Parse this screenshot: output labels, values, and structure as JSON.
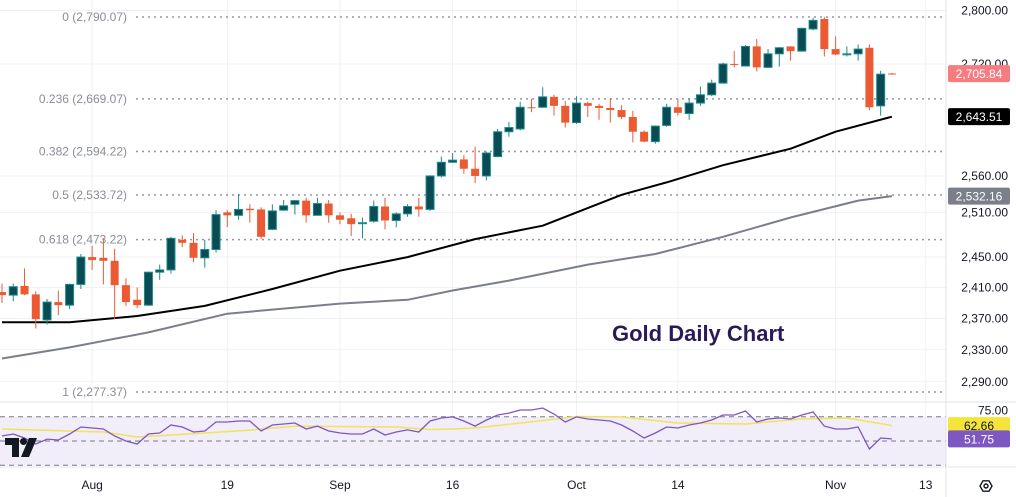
{
  "chart_data": {
    "type": "candlestick",
    "title": "Gold Daily Chart",
    "y_scale": "log",
    "grid": true,
    "colors": {
      "up_body": "#0b4b54",
      "up_border": "#1b8c8c",
      "down": "#ec5a33",
      "sma_fast": "#000000",
      "sma_slow": "#7b7f8a",
      "rsi": "#7e57c2",
      "rsi_ma": "#f2e35a",
      "rsi_band": "#f1edf9",
      "fib": "#9598a1"
    },
    "x_tick_labels": [
      {
        "date": "2024-08-01",
        "label": "Aug"
      },
      {
        "date": "2024-08-19",
        "label": "19"
      },
      {
        "date": "2024-09-02",
        "label": "Sep"
      },
      {
        "date": "2024-09-16",
        "label": "16"
      },
      {
        "date": "2024-10-01",
        "label": "Oct"
      },
      {
        "date": "2024-10-14",
        "label": "14"
      },
      {
        "date": "2024-11-01",
        "label": "Nov"
      },
      {
        "date": "2024-11-13",
        "label": "13"
      }
    ],
    "y_ticks": [
      2800,
      2720,
      2560,
      2510,
      2450,
      2410,
      2370,
      2330,
      2290
    ],
    "y_tick_labels": [
      "2,800.00",
      "2,720.00",
      "2,560.00",
      "2,510.00",
      "2,450.00",
      "2,410.00",
      "2,370.00",
      "2,330.00",
      "2,290.00"
    ],
    "fib_levels": [
      {
        "ratio": 0,
        "price": 2790.07,
        "label": "0 (2,790.07)"
      },
      {
        "ratio": 0.236,
        "price": 2669.07,
        "label": "0.236 (2,669.07)"
      },
      {
        "ratio": 0.382,
        "price": 2594.22,
        "label": "0.382 (2,594.22)"
      },
      {
        "ratio": 0.5,
        "price": 2533.72,
        "label": "0.5 (2,533.72)"
      },
      {
        "ratio": 0.618,
        "price": 2473.22,
        "label": "0.618 (2,473.22)"
      },
      {
        "ratio": 1,
        "price": 2277.37,
        "label": "1 (2,277.37)"
      }
    ],
    "price_badges": [
      {
        "value": 2705.84,
        "label": "2,705.84",
        "bg": "#f77c80",
        "fg": "#ffffff"
      },
      {
        "value": 2643.51,
        "label": "2,643.51",
        "bg": "#000000",
        "fg": "#ffffff"
      },
      {
        "value": 2532.16,
        "label": "2,532.16",
        "bg": "#7b7f8a",
        "fg": "#ffffff"
      }
    ],
    "dates": [
      "2024-07-22",
      "2024-07-23",
      "2024-07-24",
      "2024-07-25",
      "2024-07-26",
      "2024-07-29",
      "2024-07-30",
      "2024-07-31",
      "2024-08-01",
      "2024-08-02",
      "2024-08-05",
      "2024-08-06",
      "2024-08-07",
      "2024-08-08",
      "2024-08-09",
      "2024-08-12",
      "2024-08-13",
      "2024-08-14",
      "2024-08-15",
      "2024-08-16",
      "2024-08-19",
      "2024-08-20",
      "2024-08-21",
      "2024-08-22",
      "2024-08-23",
      "2024-08-26",
      "2024-08-27",
      "2024-08-28",
      "2024-08-29",
      "2024-08-30",
      "2024-09-02",
      "2024-09-03",
      "2024-09-04",
      "2024-09-05",
      "2024-09-06",
      "2024-09-09",
      "2024-09-10",
      "2024-09-11",
      "2024-09-12",
      "2024-09-13",
      "2024-09-16",
      "2024-09-17",
      "2024-09-18",
      "2024-09-19",
      "2024-09-20",
      "2024-09-23",
      "2024-09-24",
      "2024-09-25",
      "2024-09-26",
      "2024-09-27",
      "2024-09-30",
      "2024-10-01",
      "2024-10-02",
      "2024-10-03",
      "2024-10-04",
      "2024-10-07",
      "2024-10-08",
      "2024-10-09",
      "2024-10-10",
      "2024-10-11",
      "2024-10-14",
      "2024-10-15",
      "2024-10-16",
      "2024-10-17",
      "2024-10-18",
      "2024-10-21",
      "2024-10-22",
      "2024-10-23",
      "2024-10-24",
      "2024-10-25",
      "2024-10-28",
      "2024-10-29",
      "2024-10-30",
      "2024-10-31",
      "2024-11-01",
      "2024-11-04",
      "2024-11-05",
      "2024-11-06",
      "2024-11-07",
      "2024-11-08"
    ],
    "ohlc": [
      [
        2404,
        2415,
        2390,
        2400
      ],
      [
        2400,
        2415,
        2392,
        2411
      ],
      [
        2412,
        2435,
        2400,
        2401
      ],
      [
        2401,
        2405,
        2357,
        2369
      ],
      [
        2368,
        2395,
        2362,
        2391
      ],
      [
        2391,
        2406,
        2374,
        2387
      ],
      [
        2387,
        2415,
        2382,
        2414
      ],
      [
        2414,
        2454,
        2408,
        2450
      ],
      [
        2450,
        2465,
        2433,
        2446
      ],
      [
        2449,
        2475,
        2414,
        2445
      ],
      [
        2445,
        2461,
        2369,
        2413
      ],
      [
        2413,
        2422,
        2386,
        2391
      ],
      [
        2394,
        2410,
        2383,
        2387
      ],
      [
        2387,
        2431,
        2386,
        2430
      ],
      [
        2430,
        2440,
        2420,
        2433
      ],
      [
        2433,
        2477,
        2428,
        2475
      ],
      [
        2473,
        2479,
        2463,
        2469
      ],
      [
        2469,
        2482,
        2443,
        2449
      ],
      [
        2449,
        2473,
        2436,
        2460
      ],
      [
        2460,
        2513,
        2456,
        2507
      ],
      [
        2510,
        2513,
        2490,
        2506
      ],
      [
        2506,
        2535,
        2500,
        2514
      ],
      [
        2515,
        2521,
        2496,
        2513
      ],
      [
        2514,
        2517,
        2474,
        2477
      ],
      [
        2487,
        2521,
        2486,
        2512
      ],
      [
        2513,
        2527,
        2512,
        2519
      ],
      [
        2521,
        2527,
        2507,
        2526
      ],
      [
        2526,
        2530,
        2496,
        2506
      ],
      [
        2506,
        2530,
        2506,
        2522
      ],
      [
        2522,
        2527,
        2496,
        2506
      ],
      [
        2506,
        2510,
        2494,
        2500
      ],
      [
        2502,
        2508,
        2478,
        2494
      ],
      [
        2495,
        2503,
        2475,
        2496
      ],
      [
        2498,
        2526,
        2496,
        2518
      ],
      [
        2518,
        2530,
        2487,
        2499
      ],
      [
        2499,
        2510,
        2490,
        2508
      ],
      [
        2508,
        2521,
        2504,
        2518
      ],
      [
        2518,
        2530,
        2504,
        2514
      ],
      [
        2514,
        2561,
        2512,
        2560
      ],
      [
        2560,
        2587,
        2558,
        2579
      ],
      [
        2579,
        2592,
        2578,
        2582
      ],
      [
        2583,
        2589,
        2563,
        2570
      ],
      [
        2570,
        2601,
        2550,
        2560
      ],
      [
        2560,
        2594,
        2554,
        2592
      ],
      [
        2587,
        2626,
        2586,
        2622
      ],
      [
        2622,
        2636,
        2615,
        2628
      ],
      [
        2626,
        2665,
        2624,
        2657
      ],
      [
        2657,
        2669,
        2650,
        2656
      ],
      [
        2657,
        2686,
        2656,
        2672
      ],
      [
        2672,
        2675,
        2645,
        2659
      ],
      [
        2659,
        2666,
        2628,
        2635
      ],
      [
        2635,
        2673,
        2633,
        2663
      ],
      [
        2663,
        2665,
        2643,
        2659
      ],
      [
        2659,
        2662,
        2639,
        2656
      ],
      [
        2656,
        2670,
        2635,
        2653
      ],
      [
        2653,
        2660,
        2640,
        2643
      ],
      [
        2643,
        2652,
        2607,
        2622
      ],
      [
        2622,
        2624,
        2607,
        2608
      ],
      [
        2608,
        2631,
        2605,
        2630
      ],
      [
        2631,
        2662,
        2629,
        2657
      ],
      [
        2657,
        2669,
        2645,
        2649
      ],
      [
        2648,
        2670,
        2639,
        2663
      ],
      [
        2663,
        2687,
        2659,
        2675
      ],
      [
        2675,
        2697,
        2673,
        2692
      ],
      [
        2692,
        2722,
        2691,
        2720
      ],
      [
        2720,
        2739,
        2715,
        2719
      ],
      [
        2717,
        2748,
        2717,
        2746
      ],
      [
        2746,
        2757,
        2709,
        2715
      ],
      [
        2715,
        2742,
        2714,
        2735
      ],
      [
        2735,
        2745,
        2716,
        2744
      ],
      [
        2746,
        2746,
        2725,
        2739
      ],
      [
        2739,
        2774,
        2739,
        2773
      ],
      [
        2772,
        2789,
        2770,
        2785
      ],
      [
        2787,
        2790,
        2731,
        2742
      ],
      [
        2742,
        2761,
        2733,
        2734
      ],
      [
        2734,
        2746,
        2731,
        2735
      ],
      [
        2735,
        2749,
        2725,
        2742
      ],
      [
        2744,
        2749,
        2653,
        2657
      ],
      [
        2659,
        2710,
        2645,
        2705
      ],
      [
        2706,
        2707,
        2705,
        2705.84
      ]
    ],
    "sma_fast": [
      {
        "date": "2024-07-22",
        "value": 2365
      },
      {
        "date": "2024-07-30",
        "value": 2365
      },
      {
        "date": "2024-08-07",
        "value": 2373
      },
      {
        "date": "2024-08-15",
        "value": 2386
      },
      {
        "date": "2024-08-23",
        "value": 2408
      },
      {
        "date": "2024-09-02",
        "value": 2432
      },
      {
        "date": "2024-09-10",
        "value": 2450
      },
      {
        "date": "2024-09-18",
        "value": 2474
      },
      {
        "date": "2024-09-26",
        "value": 2492
      },
      {
        "date": "2024-10-07",
        "value": 2534
      },
      {
        "date": "2024-10-11",
        "value": 2551
      },
      {
        "date": "2024-10-18",
        "value": 2575
      },
      {
        "date": "2024-10-28",
        "value": 2598
      },
      {
        "date": "2024-11-01",
        "value": 2622
      },
      {
        "date": "2024-11-08",
        "value": 2643.51
      }
    ],
    "sma_slow": [
      {
        "date": "2024-07-22",
        "value": 2319
      },
      {
        "date": "2024-07-30",
        "value": 2333
      },
      {
        "date": "2024-08-08",
        "value": 2352
      },
      {
        "date": "2024-08-19",
        "value": 2376
      },
      {
        "date": "2024-09-02",
        "value": 2389
      },
      {
        "date": "2024-09-10",
        "value": 2394
      },
      {
        "date": "2024-09-16",
        "value": 2406
      },
      {
        "date": "2024-09-23",
        "value": 2419
      },
      {
        "date": "2024-10-02",
        "value": 2440
      },
      {
        "date": "2024-10-10",
        "value": 2454
      },
      {
        "date": "2024-10-18",
        "value": 2477
      },
      {
        "date": "2024-10-28",
        "value": 2503
      },
      {
        "date": "2024-11-05",
        "value": 2526
      },
      {
        "date": "2024-11-08",
        "value": 2532.16
      }
    ],
    "rsi": {
      "levels": [
        70,
        50,
        30
      ],
      "top_label": "75.00",
      "values": [
        54.1,
        55.8,
        52.5,
        47.5,
        51.6,
        50.8,
        55.8,
        61.5,
        60.7,
        59.9,
        54.1,
        50,
        47.5,
        55.8,
        56.6,
        63.2,
        61.5,
        57.4,
        58.2,
        65.6,
        65.6,
        66.5,
        66.5,
        58.2,
        63.2,
        64,
        64.8,
        59.9,
        62.3,
        58.2,
        56.6,
        55.8,
        55.8,
        59.9,
        54.9,
        57.4,
        59.1,
        57.4,
        66.5,
        68.9,
        69.8,
        66.5,
        62.3,
        67.3,
        71.4,
        73,
        75.5,
        75.5,
        77.2,
        72.2,
        65.6,
        69.8,
        68.1,
        67.3,
        66.5,
        63.2,
        58.2,
        52.5,
        56.6,
        61.5,
        60.7,
        63.2,
        64.8,
        67.3,
        71.4,
        71.4,
        74.7,
        65.6,
        68.1,
        68.9,
        68.1,
        71.4,
        73.9,
        62.3,
        59.9,
        59.9,
        61.5,
        43.4,
        52.5,
        51.75
      ],
      "ma": [
        {
          "date": "2024-07-22",
          "value": 59.9
        },
        {
          "date": "2024-07-30",
          "value": 58.2
        },
        {
          "date": "2024-08-02",
          "value": 57.4
        },
        {
          "date": "2024-08-07",
          "value": 53.3
        },
        {
          "date": "2024-08-15",
          "value": 56.6
        },
        {
          "date": "2024-08-21",
          "value": 59
        },
        {
          "date": "2024-08-27",
          "value": 62.3
        },
        {
          "date": "2024-09-09",
          "value": 61.5
        },
        {
          "date": "2024-09-12",
          "value": 59.5
        },
        {
          "date": "2024-09-16",
          "value": 59.9
        },
        {
          "date": "2024-09-18",
          "value": 60.7
        },
        {
          "date": "2024-09-30",
          "value": 68.9
        },
        {
          "date": "2024-10-01",
          "value": 70.2
        },
        {
          "date": "2024-10-07",
          "value": 69.8
        },
        {
          "date": "2024-10-14",
          "value": 64.8
        },
        {
          "date": "2024-10-22",
          "value": 64
        },
        {
          "date": "2024-10-29",
          "value": 68.1
        },
        {
          "date": "2024-11-04",
          "value": 68.9
        },
        {
          "date": "2024-11-08",
          "value": 62.66
        }
      ],
      "badges": [
        {
          "value": 62.66,
          "label": "62.66",
          "bg": "#f5e53a",
          "fg": "#131722"
        },
        {
          "value": 51.75,
          "label": "51.75",
          "bg": "#7e57c2",
          "fg": "#ffffff"
        }
      ]
    }
  },
  "ui": {
    "settings_icon": "gear-icon",
    "logo": "TV"
  }
}
